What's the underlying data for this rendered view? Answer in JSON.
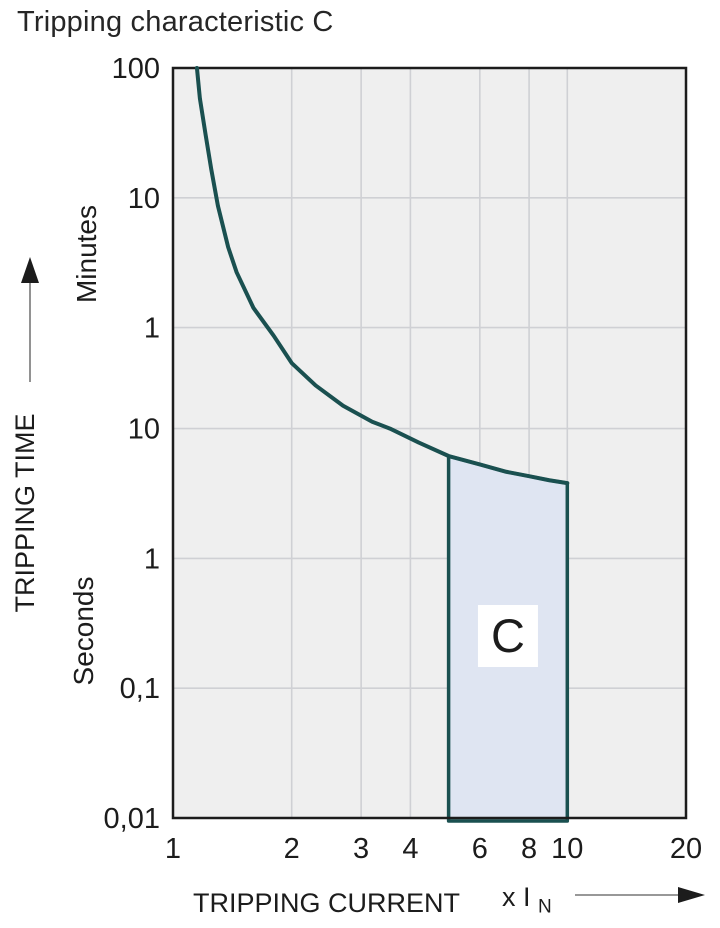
{
  "title": "Tripping characteristic C",
  "colors": {
    "plot_bg": "#efefef",
    "grid": "#cfd0d4",
    "frame": "#1c1c1c",
    "curve": "#1a5050",
    "region_fill": "#dfe5f2",
    "label_box_bg": "#ffffff",
    "text": "#1c1c1c",
    "arrow_line": "#777777"
  },
  "y_axis": {
    "title": "TRIPPING TIME",
    "unit_upper": "Minutes",
    "unit_lower": "Seconds",
    "ticks": [
      {
        "label": "100",
        "seconds": 6000
      },
      {
        "label": "10",
        "seconds": 600
      },
      {
        "label": "1",
        "seconds": 60
      },
      {
        "label": "10",
        "seconds": 10
      },
      {
        "label": "1",
        "seconds": 1
      },
      {
        "label": "0,1",
        "seconds": 0.1
      },
      {
        "label": "0,01",
        "seconds": 0.01
      }
    ]
  },
  "x_axis": {
    "title": "TRIPPING CURRENT",
    "unit": "x I",
    "unit_sub": "N",
    "tick_labels": [
      1,
      2,
      3,
      4,
      6,
      8,
      10,
      20
    ],
    "gridlines": [
      2,
      3,
      4,
      6,
      8,
      10
    ]
  },
  "chart_data": {
    "type": "line",
    "title": "Tripping characteristic C",
    "xlabel": "TRIPPING CURRENT (x IN)",
    "ylabel": "TRIPPING TIME",
    "x_scale": "log",
    "y_scale": "log",
    "xlim": [
      1,
      20
    ],
    "ylim_seconds": [
      0.01,
      6000
    ],
    "grid": true,
    "curve": {
      "name": "C characteristic trip curve",
      "points_x_multiple_vs_seconds": [
        [
          1.15,
          6000
        ],
        [
          1.17,
          3500
        ],
        [
          1.21,
          1830
        ],
        [
          1.25,
          1000
        ],
        [
          1.3,
          520
        ],
        [
          1.38,
          250
        ],
        [
          1.45,
          160
        ],
        [
          1.6,
          85
        ],
        [
          1.8,
          52
        ],
        [
          2.0,
          32
        ],
        [
          2.3,
          21.5
        ],
        [
          2.7,
          15
        ],
        [
          3.2,
          11.3
        ],
        [
          3.55,
          10
        ],
        [
          4.2,
          7.8
        ],
        [
          5.0,
          6.15
        ],
        [
          6.0,
          5.3
        ],
        [
          7.0,
          4.65
        ],
        [
          8.0,
          4.3
        ],
        [
          9.0,
          4.0
        ],
        [
          10.0,
          3.8
        ]
      ]
    },
    "region": {
      "label": "C",
      "x_from": 5,
      "x_to": 10,
      "bottom_seconds": 0.01,
      "top_boundary": "curve"
    }
  }
}
